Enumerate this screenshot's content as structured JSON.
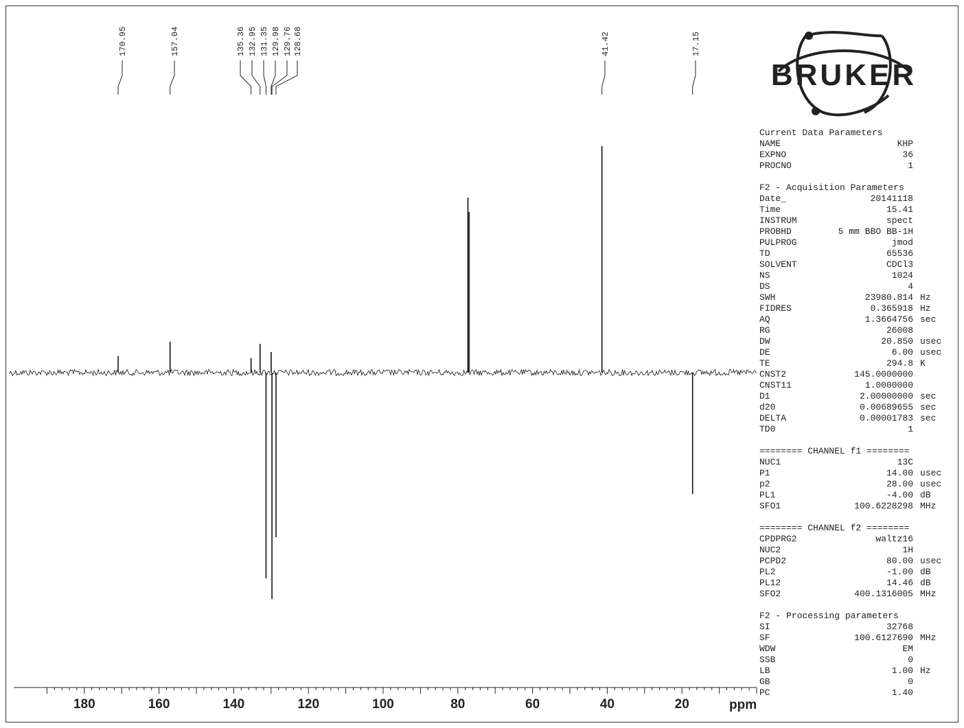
{
  "chart_data": {
    "type": "line",
    "xlabel": "ppm",
    "xlim": [
      200,
      0
    ],
    "x_ticks": [
      180,
      160,
      140,
      120,
      100,
      80,
      60,
      40,
      20
    ],
    "grid": false,
    "peak_labels": [
      "170.95",
      "157.04",
      "135.36",
      "132.95",
      "131.35",
      "129.98",
      "129.76",
      "128.68",
      "41.42",
      "17.15"
    ],
    "peaks": [
      {
        "ppm": 170.95,
        "intensity": 0.08
      },
      {
        "ppm": 157.04,
        "intensity": 0.15
      },
      {
        "ppm": 135.36,
        "intensity": 0.07
      },
      {
        "ppm": 132.95,
        "intensity": 0.14
      },
      {
        "ppm": 131.35,
        "intensity": -1.0
      },
      {
        "ppm": 129.98,
        "intensity": 0.1
      },
      {
        "ppm": 129.76,
        "intensity": -1.1
      },
      {
        "ppm": 128.68,
        "intensity": -0.8
      },
      {
        "ppm": 77.3,
        "intensity": 0.85
      },
      {
        "ppm": 77.0,
        "intensity": 0.78
      },
      {
        "ppm": 41.42,
        "intensity": 1.1
      },
      {
        "ppm": 17.15,
        "intensity": -0.59
      }
    ]
  },
  "logo": {
    "text": "BRUKER"
  },
  "params": {
    "sections": [
      {
        "title": "Current Data Parameters",
        "rows": [
          {
            "k": "NAME",
            "v": "KHP",
            "u": ""
          },
          {
            "k": "EXPNO",
            "v": "36",
            "u": ""
          },
          {
            "k": "PROCNO",
            "v": "1",
            "u": ""
          }
        ]
      },
      {
        "title": "F2 - Acquisition Parameters",
        "rows": [
          {
            "k": "Date_",
            "v": "20141118",
            "u": ""
          },
          {
            "k": "Time",
            "v": "15.41",
            "u": ""
          },
          {
            "k": "INSTRUM",
            "v": "spect",
            "u": ""
          },
          {
            "k": "PROBHD",
            "v": "5 mm BBO BB-1H",
            "u": ""
          },
          {
            "k": "PULPROG",
            "v": "jmod",
            "u": ""
          },
          {
            "k": "TD",
            "v": "65536",
            "u": ""
          },
          {
            "k": "SOLVENT",
            "v": "CDCl3",
            "u": ""
          },
          {
            "k": "NS",
            "v": "1024",
            "u": ""
          },
          {
            "k": "DS",
            "v": "4",
            "u": ""
          },
          {
            "k": "SWH",
            "v": "23980.814",
            "u": "Hz"
          },
          {
            "k": "FIDRES",
            "v": "0.365918",
            "u": "Hz"
          },
          {
            "k": "AQ",
            "v": "1.3664756",
            "u": "sec"
          },
          {
            "k": "RG",
            "v": "26008",
            "u": ""
          },
          {
            "k": "DW",
            "v": "20.850",
            "u": "usec"
          },
          {
            "k": "DE",
            "v": "6.00",
            "u": "usec"
          },
          {
            "k": "TE",
            "v": "294.8",
            "u": "K"
          },
          {
            "k": "CNST2",
            "v": "145.0000000",
            "u": ""
          },
          {
            "k": "CNST11",
            "v": "1.0000000",
            "u": ""
          },
          {
            "k": "D1",
            "v": "2.00000000",
            "u": "sec"
          },
          {
            "k": "d20",
            "v": "0.00689655",
            "u": "sec"
          },
          {
            "k": "DELTA",
            "v": "0.00001783",
            "u": "sec"
          },
          {
            "k": "TD0",
            "v": "1",
            "u": ""
          }
        ]
      },
      {
        "title": "======== CHANNEL f1 ========",
        "rows": [
          {
            "k": "NUC1",
            "v": "13C",
            "u": ""
          },
          {
            "k": "P1",
            "v": "14.00",
            "u": "usec"
          },
          {
            "k": "p2",
            "v": "28.00",
            "u": "usec"
          },
          {
            "k": "PL1",
            "v": "-4.00",
            "u": "dB"
          },
          {
            "k": "SFO1",
            "v": "100.6228298",
            "u": "MHz"
          }
        ]
      },
      {
        "title": "======== CHANNEL f2 ========",
        "rows": [
          {
            "k": "CPDPRG2",
            "v": "waltz16",
            "u": ""
          },
          {
            "k": "NUC2",
            "v": "1H",
            "u": ""
          },
          {
            "k": "PCPD2",
            "v": "80.00",
            "u": "usec"
          },
          {
            "k": "PL2",
            "v": "-1.00",
            "u": "dB"
          },
          {
            "k": "PL12",
            "v": "14.46",
            "u": "dB"
          },
          {
            "k": "SFO2",
            "v": "400.1316005",
            "u": "MHz"
          }
        ]
      },
      {
        "title": "F2 - Processing parameters",
        "rows": [
          {
            "k": "SI",
            "v": "32768",
            "u": ""
          },
          {
            "k": "SF",
            "v": "100.6127690",
            "u": "MHz"
          },
          {
            "k": "WDW",
            "v": "EM",
            "u": ""
          },
          {
            "k": "SSB",
            "v": "0",
            "u": ""
          },
          {
            "k": "LB",
            "v": "1.00",
            "u": "Hz"
          },
          {
            "k": "GB",
            "v": "0",
            "u": ""
          },
          {
            "k": "PC",
            "v": "1.40",
            "u": ""
          }
        ]
      }
    ]
  }
}
